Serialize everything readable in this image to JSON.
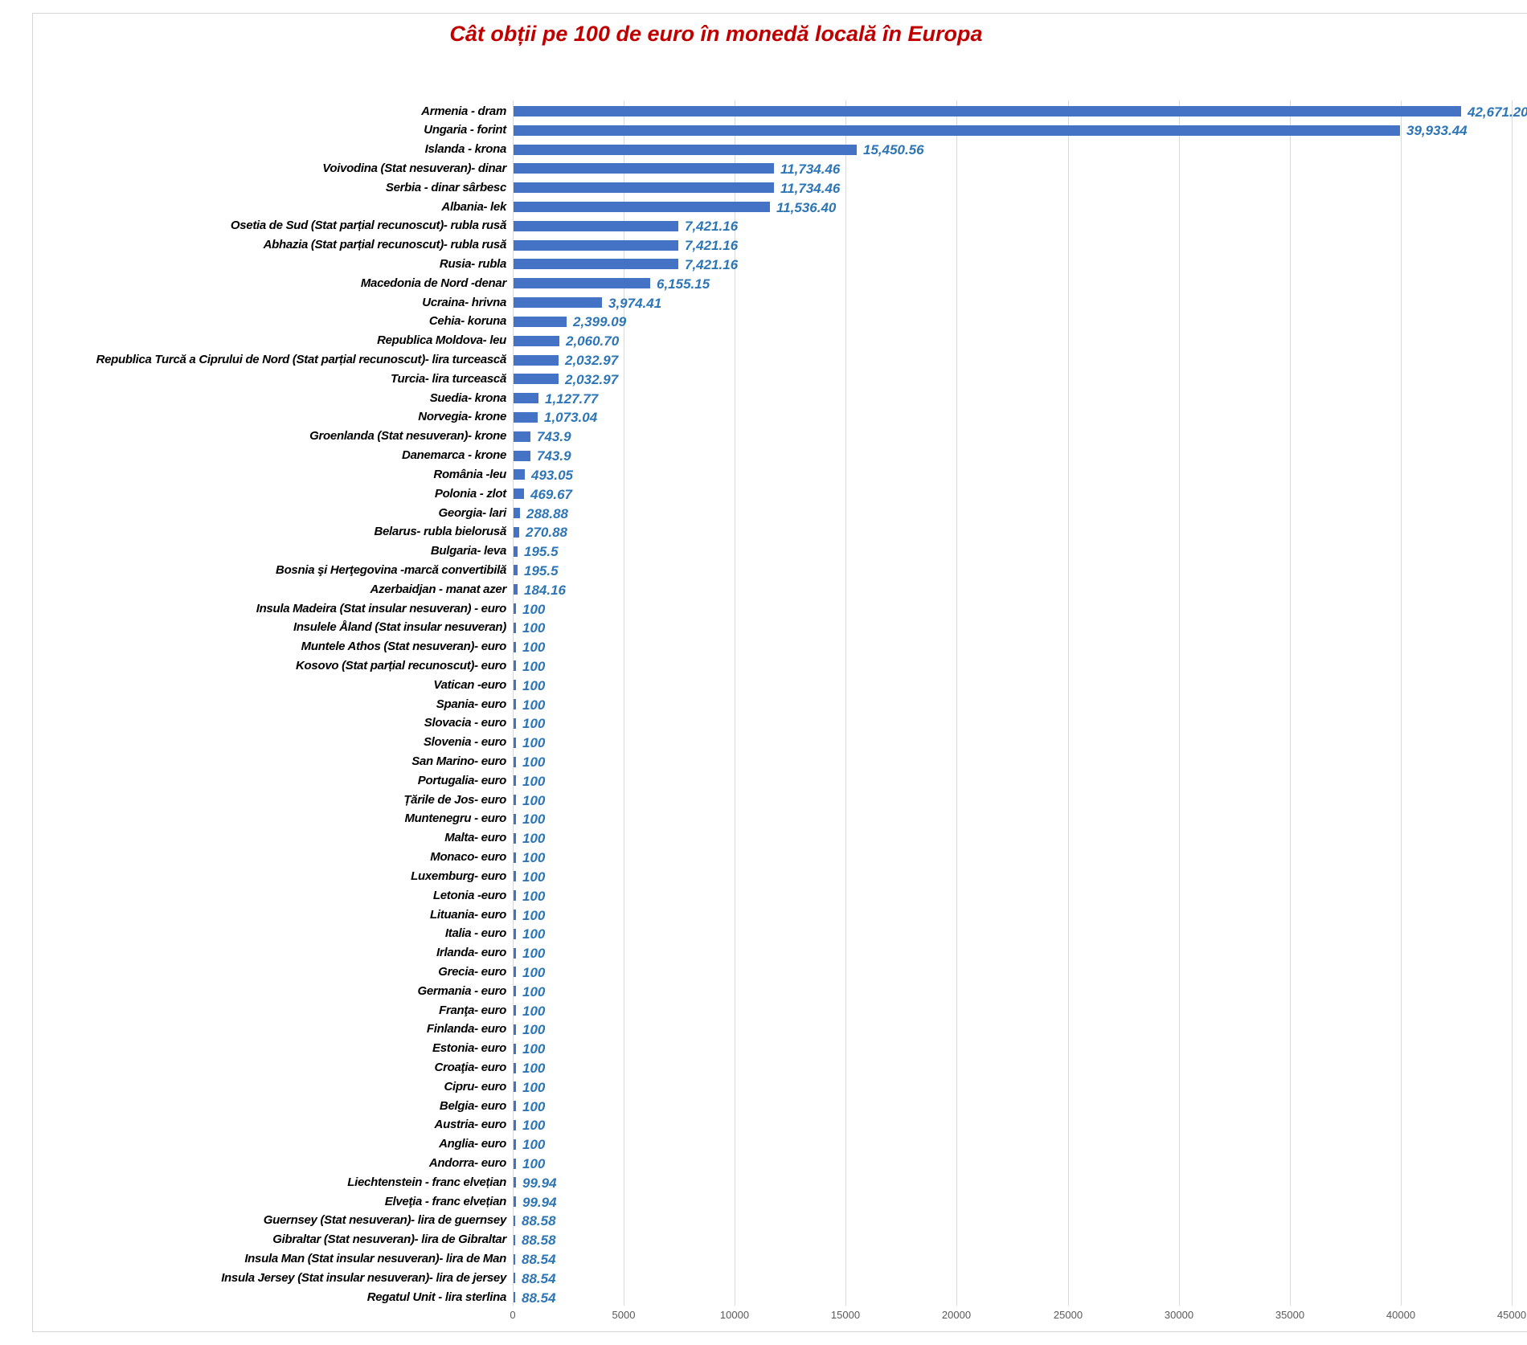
{
  "chart_data": {
    "type": "bar",
    "orientation": "horizontal",
    "title": "Cât obții pe 100 de euro în monedă locală în Europa",
    "xlabel": "",
    "ylabel": "",
    "xlim": [
      0,
      45000
    ],
    "x_ticks": [
      0,
      5000,
      10000,
      15000,
      20000,
      25000,
      30000,
      35000,
      40000,
      45000
    ],
    "x_tick_labels": [
      "0",
      "5000",
      "10000",
      "15000",
      "20000",
      "25000",
      "30000",
      "35000",
      "40000",
      "45000"
    ],
    "grid": "vertical",
    "legend": "none",
    "colors": {
      "bar": "#4472C4",
      "value_label": "#2E75B6",
      "title": "#C00000",
      "category_label": "#000000",
      "axis_tick_label": "#595959",
      "gridline": "#D9D9D9"
    },
    "points": [
      {
        "label": "Armenia - dram",
        "value": 42671.2,
        "display": "42,671.20"
      },
      {
        "label": "Ungaria - forint",
        "value": 39933.44,
        "display": "39,933.44"
      },
      {
        "label": "Islanda - krona",
        "value": 15450.56,
        "display": "15,450.56"
      },
      {
        "label": "Voivodina (Stat nesuveran)- dinar",
        "value": 11734.46,
        "display": "11,734.46"
      },
      {
        "label": "Serbia - dinar sârbesc",
        "value": 11734.46,
        "display": "11,734.46"
      },
      {
        "label": "Albania- lek",
        "value": 11536.4,
        "display": "11,536.40"
      },
      {
        "label": "Osetia de Sud (Stat parțial recunoscut)- rubla rusă",
        "value": 7421.16,
        "display": "7,421.16"
      },
      {
        "label": "Abhazia (Stat parțial recunoscut)- rubla rusă",
        "value": 7421.16,
        "display": "7,421.16"
      },
      {
        "label": "Rusia- rubla",
        "value": 7421.16,
        "display": "7,421.16"
      },
      {
        "label": "Macedonia de Nord -denar",
        "value": 6155.15,
        "display": "6,155.15"
      },
      {
        "label": "Ucraina- hrivna",
        "value": 3974.41,
        "display": "3,974.41"
      },
      {
        "label": "Cehia- koruna",
        "value": 2399.09,
        "display": "2,399.09"
      },
      {
        "label": "Republica Moldova- leu",
        "value": 2060.7,
        "display": "2,060.70"
      },
      {
        "label": "Republica Turcă a Ciprului de Nord (Stat parțial recunoscut)- lira turcească",
        "value": 2032.97,
        "display": "2,032.97"
      },
      {
        "label": "Turcia- lira turcească",
        "value": 2032.97,
        "display": "2,032.97"
      },
      {
        "label": "Suedia- krona",
        "value": 1127.77,
        "display": "1,127.77"
      },
      {
        "label": "Norvegia- krone",
        "value": 1073.04,
        "display": "1,073.04"
      },
      {
        "label": "Groenlanda (Stat nesuveran)- krone",
        "value": 743.9,
        "display": "743.9"
      },
      {
        "label": "Danemarca - krone",
        "value": 743.9,
        "display": "743.9"
      },
      {
        "label": "România  -leu",
        "value": 493.05,
        "display": "493.05"
      },
      {
        "label": "Polonia - zlot",
        "value": 469.67,
        "display": "469.67"
      },
      {
        "label": "Georgia- lari",
        "value": 288.88,
        "display": "288.88"
      },
      {
        "label": "Belarus- rubla bielorusă",
        "value": 270.88,
        "display": "270.88"
      },
      {
        "label": "Bulgaria- leva",
        "value": 195.5,
        "display": "195.5"
      },
      {
        "label": "Bosnia şi Herţegovina -marcă convertibilă",
        "value": 195.5,
        "display": "195.5"
      },
      {
        "label": "Azerbaidjan - manat azer",
        "value": 184.16,
        "display": "184.16"
      },
      {
        "label": "Insula Madeira (Stat insular nesuveran) - euro",
        "value": 100,
        "display": "100"
      },
      {
        "label": "Insulele Åland (Stat insular nesuveran)",
        "value": 100,
        "display": "100"
      },
      {
        "label": "Muntele Athos (Stat nesuveran)- euro",
        "value": 100,
        "display": "100"
      },
      {
        "label": "Kosovo (Stat parțial recunoscut)- euro",
        "value": 100,
        "display": "100"
      },
      {
        "label": "Vatican -euro",
        "value": 100,
        "display": "100"
      },
      {
        "label": "Spania- euro",
        "value": 100,
        "display": "100"
      },
      {
        "label": "Slovacia - euro",
        "value": 100,
        "display": "100"
      },
      {
        "label": "Slovenia - euro",
        "value": 100,
        "display": "100"
      },
      {
        "label": "San Marino- euro",
        "value": 100,
        "display": "100"
      },
      {
        "label": "Portugalia- euro",
        "value": 100,
        "display": "100"
      },
      {
        "label": "Țările de Jos- euro",
        "value": 100,
        "display": "100"
      },
      {
        "label": "Muntenegru - euro",
        "value": 100,
        "display": "100"
      },
      {
        "label": "Malta- euro",
        "value": 100,
        "display": "100"
      },
      {
        "label": "Monaco- euro",
        "value": 100,
        "display": "100"
      },
      {
        "label": "Luxemburg- euro",
        "value": 100,
        "display": "100"
      },
      {
        "label": "Letonia -euro",
        "value": 100,
        "display": "100"
      },
      {
        "label": "Lituania- euro",
        "value": 100,
        "display": "100"
      },
      {
        "label": "Italia - euro",
        "value": 100,
        "display": "100"
      },
      {
        "label": "Irlanda- euro",
        "value": 100,
        "display": "100"
      },
      {
        "label": "Grecia- euro",
        "value": 100,
        "display": "100"
      },
      {
        "label": "Germania - euro",
        "value": 100,
        "display": "100"
      },
      {
        "label": "Franţa- euro",
        "value": 100,
        "display": "100"
      },
      {
        "label": "Finlanda- euro",
        "value": 100,
        "display": "100"
      },
      {
        "label": "Estonia- euro",
        "value": 100,
        "display": "100"
      },
      {
        "label": "Croaţia- euro",
        "value": 100,
        "display": "100"
      },
      {
        "label": "Cipru- euro",
        "value": 100,
        "display": "100"
      },
      {
        "label": "Belgia- euro",
        "value": 100,
        "display": "100"
      },
      {
        "label": "Austria- euro",
        "value": 100,
        "display": "100"
      },
      {
        "label": "Anglia- euro",
        "value": 100,
        "display": "100"
      },
      {
        "label": "Andorra- euro",
        "value": 100,
        "display": "100"
      },
      {
        "label": "Liechtenstein - franc elvețian",
        "value": 99.94,
        "display": "99.94"
      },
      {
        "label": "Elveţia - franc elvețian",
        "value": 99.94,
        "display": "99.94"
      },
      {
        "label": "Guernsey (Stat nesuveran)- lira de guernsey",
        "value": 88.58,
        "display": "88.58"
      },
      {
        "label": "Gibraltar (Stat nesuveran)- lira de Gibraltar",
        "value": 88.58,
        "display": "88.58"
      },
      {
        "label": "Insula Man (Stat insular nesuveran)- lira de Man",
        "value": 88.54,
        "display": "88.54"
      },
      {
        "label": "Insula Jersey (Stat insular nesuveran)- lira de jersey",
        "value": 88.54,
        "display": "88.54"
      },
      {
        "label": "Regatul Unit - lira sterlina",
        "value": 88.54,
        "display": "88.54"
      }
    ]
  }
}
